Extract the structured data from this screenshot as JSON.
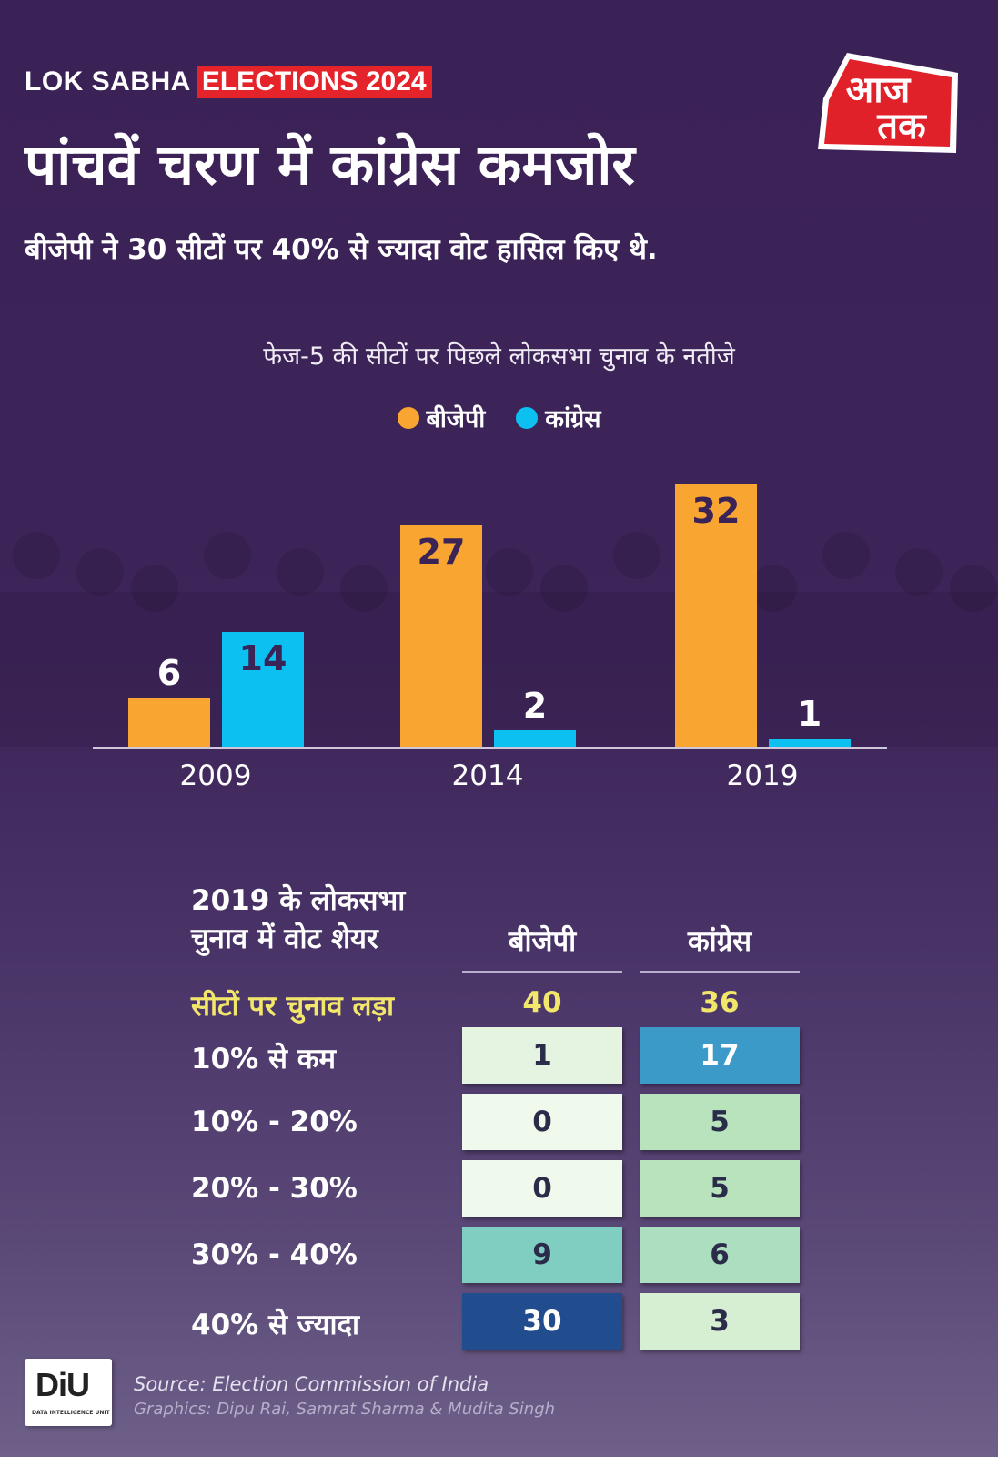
{
  "header": {
    "brand_lok": "LOK SABHA",
    "brand_elections": "ELECTIONS 2024",
    "title": "पांचवें चरण में कांग्रेस कमजोर",
    "subtitle": "बीजेपी ने 30 सीटों पर 40% से ज्यादा वोट हासिल किए थे.",
    "logo_top": "आज",
    "logo_bottom": "तक"
  },
  "colors": {
    "bjp": "#f8a531",
    "congress": "#0cc1f2",
    "background": "#3d2459",
    "brand_red": "#e4232b",
    "highlight_yellow": "#f2e76b"
  },
  "chart_data": {
    "type": "bar",
    "title": "फेज-5 की सीटों पर पिछले लोकसभा चुनाव के नतीजे",
    "categories": [
      "2009",
      "2014",
      "2019"
    ],
    "series": [
      {
        "name": "बीजेपी",
        "values": [
          6,
          27,
          32
        ]
      },
      {
        "name": "कांग्रेस",
        "values": [
          14,
          2,
          1
        ]
      }
    ],
    "ylim": [
      0,
      32
    ],
    "legend": "top-center",
    "grid": false
  },
  "table": {
    "heading_line1": "2019 के लोकसभा",
    "heading_line2": "चुनाव में वोट शेयर",
    "columns": [
      "बीजेपी",
      "कांग्रेस"
    ],
    "contested_label": "सीटों पर चुनाव लड़ा",
    "contested": [
      "40",
      "36"
    ],
    "rows": [
      {
        "label": "10% से कम",
        "bjp": "1",
        "congress": "17"
      },
      {
        "label": "10% - 20%",
        "bjp": "0",
        "congress": "5"
      },
      {
        "label": "20% - 30%",
        "bjp": "0",
        "congress": "5"
      },
      {
        "label": "30% - 40%",
        "bjp": "9",
        "congress": "6"
      },
      {
        "label": "40% से ज्यादा",
        "bjp": "30",
        "congress": "3"
      }
    ]
  },
  "footer": {
    "diu_logo": "DiU",
    "diu_caption": "DATA INTELLIGENCE UNIT",
    "source": "Source: Election Commission of India",
    "credits": "Graphics: Dipu Rai, Samrat Sharma & Mudita Singh"
  }
}
